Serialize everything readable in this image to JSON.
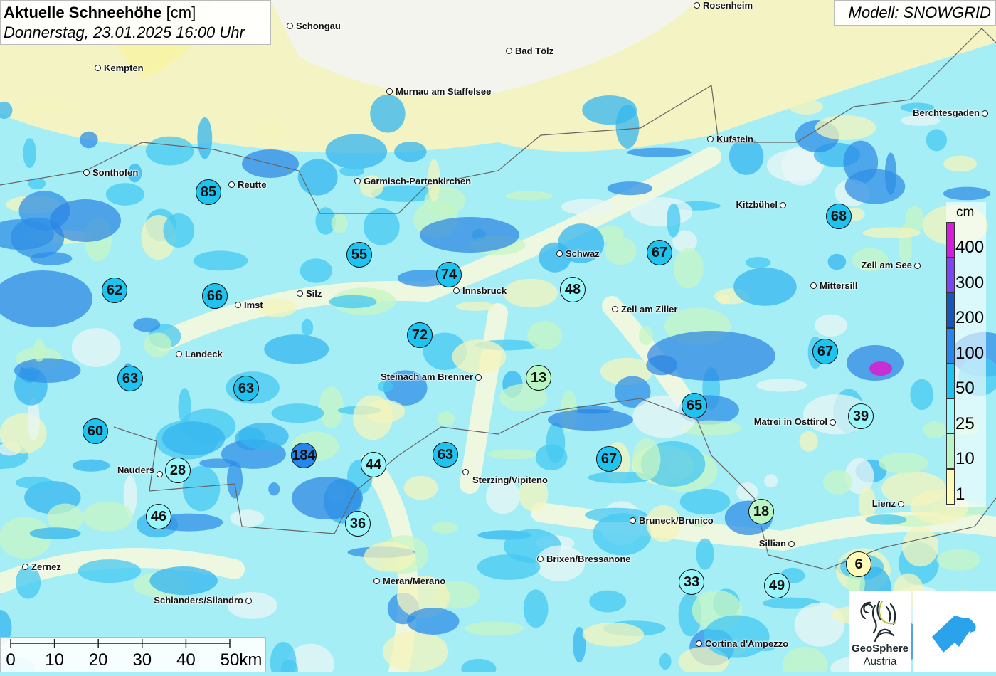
{
  "title": {
    "main_bold": "Aktuelle Schneehöhe",
    "main_unit": " [cm]",
    "datetime": "Donnerstag, 23.01.2025 16:00 Uhr"
  },
  "model": "Modell: SNOWGRID",
  "cities": [
    "Schongau",
    "Rosenheim",
    "Bad Tölz",
    "Kempten",
    "Murnau am Staffelsee",
    "Berchtesgaden",
    "Kufstein",
    "Sonthofen",
    "Reutte",
    "Garmisch-Partenkirchen",
    "Kitzbühel",
    "Schwaz",
    "Zell am See",
    "Innsbruck",
    "Silz",
    "Imst",
    "Mittersill",
    "Zell am Ziller",
    "Landeck",
    "Steinach am Brenner",
    "Matrei in Osttirol",
    "Nauders",
    "Sterzing/Vipiteno",
    "Lienz",
    "Bruneck/Brunico",
    "Sillian",
    "Brixen/Bressanone",
    "Zernez",
    "Meran/Merano",
    "Schlanders/Silandro",
    "Cortina d'Ampezzo"
  ],
  "snow_values": [
    "85",
    "55",
    "74",
    "62",
    "66",
    "72",
    "67",
    "48",
    "68",
    "67",
    "13",
    "63",
    "63",
    "65",
    "39",
    "60",
    "184",
    "63",
    "44",
    "28",
    "67",
    "46",
    "18",
    "36",
    "6",
    "33",
    "49"
  ],
  "legend": {
    "unit": "cm",
    "classes": [
      {
        "label": "400",
        "color": "#d21ed8"
      },
      {
        "label": "300",
        "color": "#7b45f0"
      },
      {
        "label": "200",
        "color": "#1556b8"
      },
      {
        "label": "100",
        "color": "#2586ee"
      },
      {
        "label": "50",
        "color": "#1ec3ef"
      },
      {
        "label": "25",
        "color": "#98f6fb"
      },
      {
        "label": "10",
        "color": "#b9f6c4"
      },
      {
        "label": "1",
        "color": "#fdfbb6"
      }
    ]
  },
  "scale_bar": {
    "labels": [
      "0",
      "10",
      "20",
      "30",
      "40",
      "50km"
    ]
  },
  "logos": {
    "geosphere_line1": "GeoSphere",
    "geosphere_line2": "Austria"
  }
}
